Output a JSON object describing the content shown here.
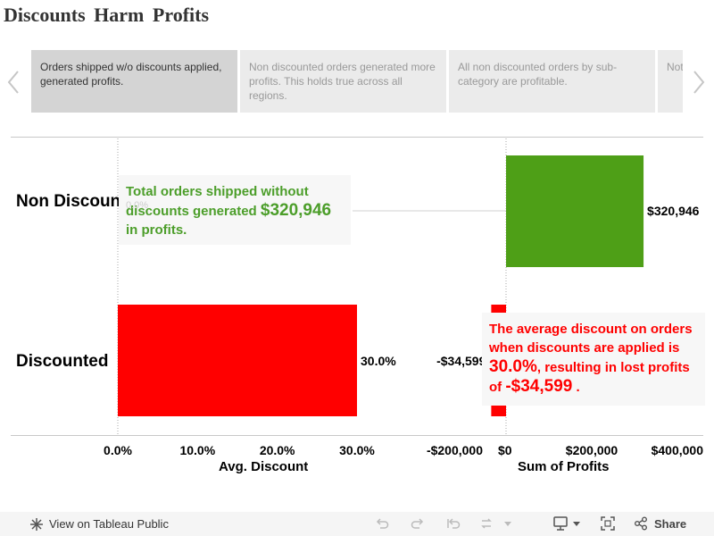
{
  "title": "Discounts  Harm  Profits",
  "story_points": [
    {
      "text": "Orders shipped w/o discounts applied, generated profits.",
      "active": true
    },
    {
      "text": "Non discounted orders generated more profits. This holds true across all regions.",
      "active": false
    },
    {
      "text": "All non discounted orders by sub-category are profitable.",
      "active": false
    },
    {
      "text": "Not discounted orders category",
      "active": false
    }
  ],
  "rows": {
    "non_discounted": "Non Discounted",
    "discounted": "Discounted"
  },
  "annotations": {
    "green": {
      "text1": "Total orders shipped without discounts generated ",
      "value": "$320,946",
      "text2": " in profits."
    },
    "red": {
      "text1": "The average discount on orders when discounts are applied is ",
      "value1": "30.0%",
      "text2": ", resulting in lost profits of ",
      "value2": "-$34,599",
      "text3": " ."
    },
    "ghost": "0.0%"
  },
  "footer": {
    "view_label": "View on Tableau Public",
    "share_label": "Share"
  },
  "colors": {
    "green": "#4e9f17",
    "red": "#ff0000"
  },
  "chart_data": [
    {
      "type": "bar",
      "orientation": "horizontal",
      "categories": [
        "Non Discounted",
        "Discounted"
      ],
      "values": [
        0.0,
        30.0
      ],
      "data_labels": [
        "",
        "30.0%"
      ],
      "xlabel": "Avg. Discount",
      "ticks": [
        "0.0%",
        "10.0%",
        "20.0%",
        "30.0%"
      ],
      "tick_values": [
        0,
        10,
        20,
        30
      ],
      "xlim": [
        0,
        36.5
      ]
    },
    {
      "type": "bar",
      "orientation": "horizontal",
      "categories": [
        "Non Discounted",
        "Discounted"
      ],
      "values": [
        320946,
        -34599
      ],
      "data_labels": [
        "$320,946",
        "-$34,599"
      ],
      "xlabel": "Sum of Profits",
      "ticks": [
        "-$200,000",
        "$0",
        "$200,000",
        "$400,000"
      ],
      "tick_values": [
        -200000,
        0,
        200000,
        400000
      ],
      "xlim": [
        -200000,
        400000
      ]
    }
  ]
}
